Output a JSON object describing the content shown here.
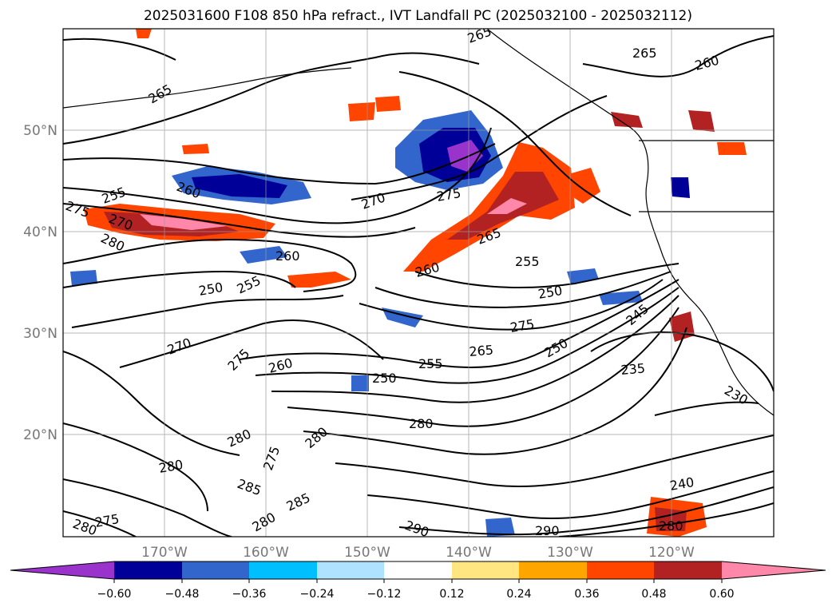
{
  "title": "2025031600 F108 850 hPa refract., IVT Landfall PC (2025032100 - 2025032112)",
  "latitude_labels": [
    "50°N",
    "40°N",
    "30°N",
    "20°N"
  ],
  "longitude_labels": [
    "170°W",
    "160°W",
    "150°W",
    "140°W",
    "130°W",
    "120°W"
  ],
  "contour_labels": [
    "265",
    "265",
    "260",
    "260",
    "255",
    "270",
    "280",
    "275",
    "265",
    "270",
    "275",
    "260",
    "265",
    "260",
    "255",
    "250",
    "250",
    "255",
    "245",
    "270",
    "275",
    "275",
    "265",
    "250",
    "260",
    "255",
    "250",
    "235",
    "280",
    "230",
    "280",
    "280",
    "275",
    "285",
    "280",
    "280",
    "275",
    "285",
    "290",
    "290",
    "240",
    "280",
    "280"
  ],
  "colorbar": {
    "tick_labels": [
      "−0.60",
      "−0.48",
      "−0.36",
      "−0.24",
      "−0.12",
      "0.12",
      "0.24",
      "0.36",
      "0.48",
      "0.60"
    ],
    "colors": [
      "#9933cc",
      "#000099",
      "#3366cc",
      "#00bfff",
      "#aee2ff",
      "#ffffff",
      "#ffe680",
      "#ffa500",
      "#ff4500",
      "#b22222",
      "#ff88aa"
    ]
  },
  "colors": {
    "contour": "#000000",
    "grid": "#999999",
    "axis_text": "#777777"
  }
}
